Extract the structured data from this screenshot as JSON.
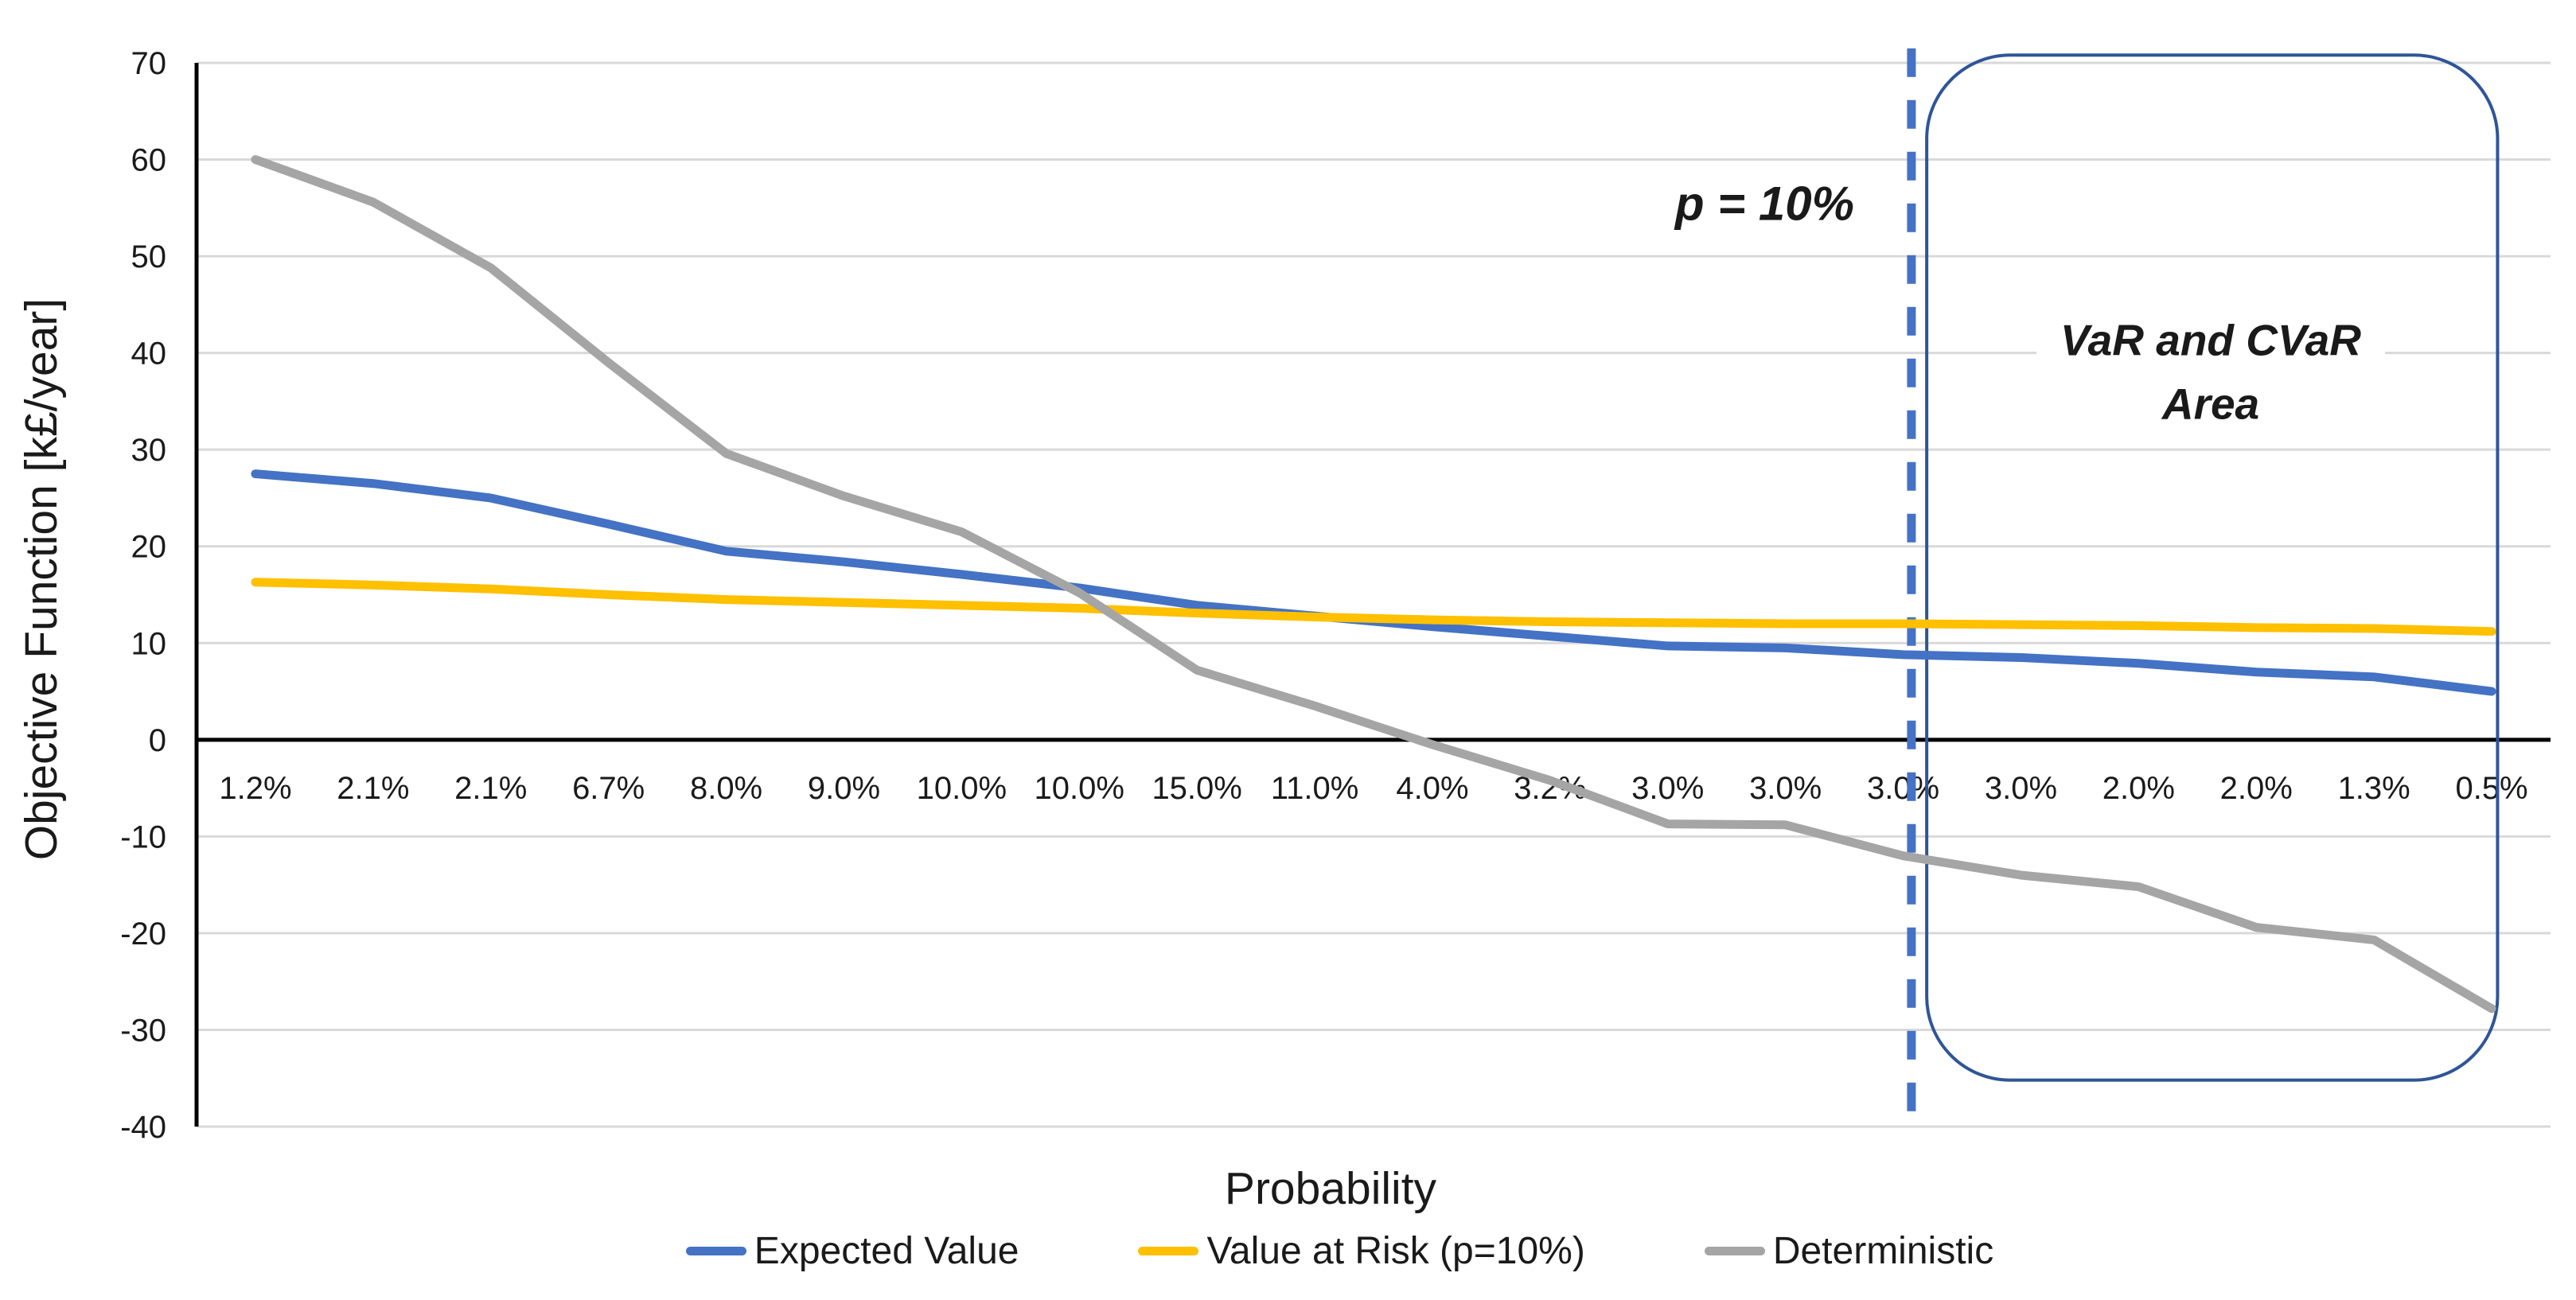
{
  "chart_data": {
    "type": "line",
    "title": "",
    "xlabel": "Probability",
    "ylabel": "Objective Function [k£/year]",
    "ylim": [
      -40,
      70
    ],
    "y_ticks": [
      70,
      60,
      50,
      40,
      30,
      20,
      10,
      0,
      -10,
      -20,
      -30,
      -40
    ],
    "grid": true,
    "legend_position": "bottom",
    "categories": [
      "1.2%",
      "2.1%",
      "2.1%",
      "6.7%",
      "8.0%",
      "9.0%",
      "10.0%",
      "10.0%",
      "15.0%",
      "11.0%",
      "4.0%",
      "3.2%",
      "3.0%",
      "3.0%",
      "3.0%",
      "3.0%",
      "2.0%",
      "2.0%",
      "1.3%",
      "0.5%"
    ],
    "series": [
      {
        "name": "Expected Value",
        "color": "#4472C4",
        "values": [
          27.5,
          26.5,
          25.0,
          22.3,
          19.5,
          18.4,
          17.1,
          15.7,
          13.9,
          12.8,
          11.7,
          10.7,
          9.7,
          9.5,
          8.8,
          8.5,
          7.9,
          7.0,
          6.5,
          5.0
        ]
      },
      {
        "name": "Value at Risk (p=10%)",
        "color": "#FFC000",
        "values": [
          16.3,
          16.0,
          15.6,
          15.0,
          14.5,
          14.2,
          13.9,
          13.6,
          13.1,
          12.7,
          12.4,
          12.2,
          12.1,
          12.0,
          12.0,
          11.9,
          11.8,
          11.6,
          11.5,
          11.2
        ]
      },
      {
        "name": "Deterministic",
        "color": "#A5A5A5",
        "values": [
          60.0,
          55.6,
          48.8,
          39.0,
          29.6,
          25.2,
          21.5,
          15.2,
          7.2,
          3.5,
          -0.5,
          -4.2,
          -8.7,
          -8.8,
          -12.0,
          -14.0,
          -15.2,
          -19.4,
          -20.7,
          -27.8
        ]
      }
    ],
    "annotations": {
      "dashed_line": {
        "label": "p = 10%",
        "color": "#4472C4",
        "x_category_index": 14.07,
        "y_value_range": [
          -39.2,
          71.5
        ]
      },
      "area_box": {
        "line1": "VaR and CVaR",
        "line2": "Area",
        "color": "#2F5597",
        "x_category_index_range": [
          14.2,
          19.05
        ],
        "y_value_range": [
          -35.2,
          70.8
        ]
      }
    }
  }
}
